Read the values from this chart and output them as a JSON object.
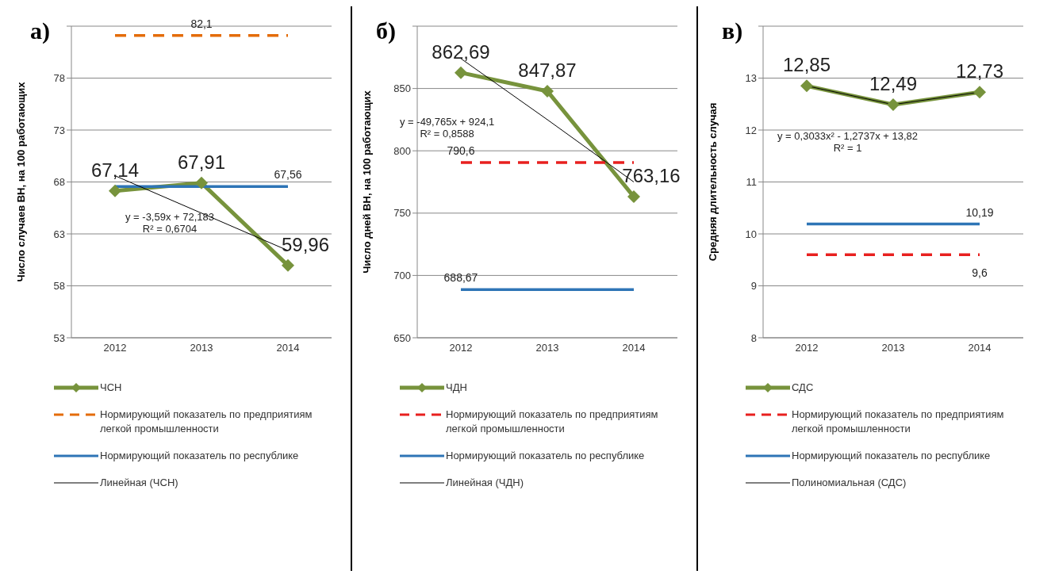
{
  "chart_data": [
    {
      "type": "line",
      "title": "а)",
      "ylabel": "Число случаев ВН, на 100 работающих",
      "categories": [
        "2012",
        "2013",
        "2014"
      ],
      "ylim": [
        53,
        83
      ],
      "yticks": [
        53,
        58,
        63,
        68,
        73,
        78,
        {
          "value": 83,
          "label": null
        }
      ],
      "grid": "y",
      "legend": "bottom",
      "annotations": [
        "y = -3,59x + 72,183",
        "R² = 0,6704"
      ],
      "series": [
        {
          "name": "ЧСН",
          "color": "#77933c",
          "values": [
            67.14,
            67.91,
            59.96
          ],
          "marker": "diamond",
          "line_style": "solid",
          "value_labels": [
            "67,14",
            "67,91",
            "59,96"
          ]
        },
        {
          "name": "Нормирующий показатель по предприятиям легкой промышленности",
          "color": "#e46c0a",
          "values": [
            82.1,
            82.1,
            82.1
          ],
          "marker": "none",
          "line_style": "dashed",
          "value_labels": [
            null,
            "82,1",
            null
          ]
        },
        {
          "name": "Нормирующий показатель по республике",
          "color": "#2e75b6",
          "values": [
            67.56,
            67.56,
            67.56
          ],
          "marker": "none",
          "line_style": "solid",
          "value_labels": [
            null,
            null,
            "67,56"
          ]
        },
        {
          "name": "Линейная (ЧСН)",
          "color": "#000000",
          "values": [
            68.6,
            65.0,
            61.4
          ],
          "marker": "none",
          "line_style": "solid"
        }
      ]
    },
    {
      "type": "line",
      "title": "б)",
      "ylabel": "Число дней ВН, на 100 работающих",
      "categories": [
        "2012",
        "2013",
        "2014"
      ],
      "ylim": [
        650,
        900
      ],
      "yticks": [
        650,
        700,
        750,
        800,
        850,
        {
          "value": 900,
          "label": null
        }
      ],
      "grid": "y",
      "legend": "bottom",
      "annotations": [
        "y = -49,765x + 924,1",
        "R² = 0,8588"
      ],
      "series": [
        {
          "name": "ЧДН",
          "color": "#77933c",
          "values": [
            862.69,
            847.87,
            763.16
          ],
          "marker": "diamond",
          "line_style": "solid",
          "value_labels": [
            "862,69",
            "847,87",
            "763,16"
          ]
        },
        {
          "name": "Нормирующий показатель по предприятиям легкой промышленности",
          "color": "#e8201f",
          "values": [
            790.6,
            790.6,
            790.6
          ],
          "marker": "none",
          "line_style": "dashed",
          "value_labels": [
            "790,6",
            null,
            null
          ]
        },
        {
          "name": "Нормирующий показатель по республике",
          "color": "#2e75b6",
          "values": [
            688.67,
            688.67,
            688.67
          ],
          "marker": "none",
          "line_style": "solid",
          "value_labels": [
            "688,67",
            null,
            null
          ]
        },
        {
          "name": "Линейная (ЧДН)",
          "color": "#000000",
          "values": [
            874,
            825,
            775
          ],
          "marker": "none",
          "line_style": "solid"
        }
      ]
    },
    {
      "type": "line",
      "title": "в)",
      "ylabel": "Средняя длительность случая",
      "categories": [
        "2012",
        "2013",
        "2014"
      ],
      "ylim": [
        8,
        14
      ],
      "yticks": [
        8,
        9,
        10,
        11,
        12,
        13,
        {
          "value": 14,
          "label": null
        }
      ],
      "grid": "y",
      "legend": "bottom",
      "annotations": [
        "y = 0,3033x² - 1,2737x + 13,82",
        "R² = 1"
      ],
      "series": [
        {
          "name": "СДС",
          "color": "#77933c",
          "values": [
            12.85,
            12.49,
            12.73
          ],
          "marker": "diamond",
          "line_style": "solid",
          "value_labels": [
            "12,85",
            "12,49",
            "12,73"
          ]
        },
        {
          "name": "Нормирующий показатель по предприятиям легкой промышленности",
          "color": "#e8201f",
          "values": [
            9.6,
            9.6,
            9.6
          ],
          "marker": "none",
          "line_style": "dashed",
          "value_labels": [
            null,
            null,
            "9,6"
          ]
        },
        {
          "name": "Нормирующий показатель по республике",
          "color": "#2e75b6",
          "values": [
            10.19,
            10.19,
            10.19
          ],
          "marker": "none",
          "line_style": "solid",
          "value_labels": [
            null,
            null,
            "10,19"
          ]
        },
        {
          "name": "Полиномиальная (СДС)",
          "color": "#000000",
          "values": [
            12.85,
            12.49,
            12.73
          ],
          "marker": "none",
          "line_style": "solid"
        }
      ]
    }
  ]
}
